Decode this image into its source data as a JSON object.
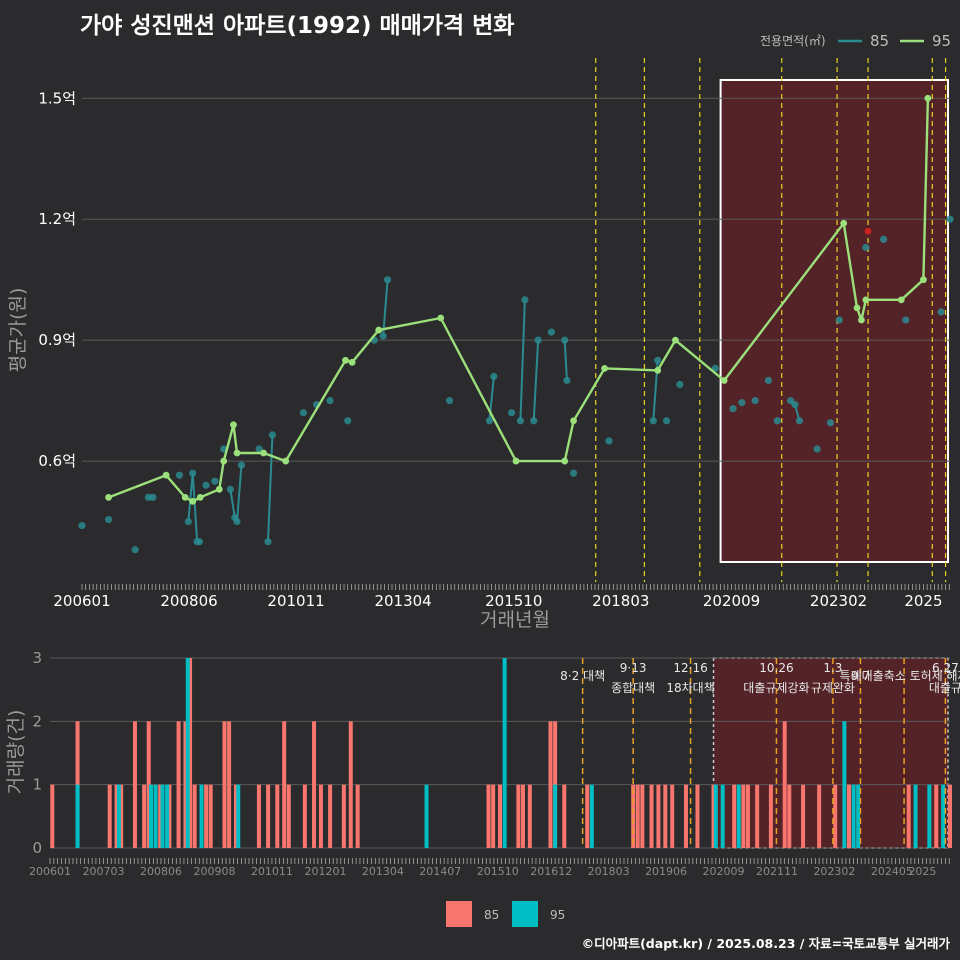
{
  "title": "가야 성진맨션 아파트(1992) 매매가격 변화",
  "footer": "©디아파트(dapt.kr) / 2025.08.23 / 자료=국토교통부 실거래가",
  "colors": {
    "background": "#2b2b2d",
    "grid": "#5a5a5a",
    "line85": "#2a8a8f",
    "line95": "#9be07a",
    "bar85": "#f8766d",
    "bar95": "#00bfc4",
    "highlight_fill": "#5b2228",
    "policy_line": "#e8d229",
    "policy_line_bottom": "#e8a020"
  },
  "chart_data": [
    {
      "type": "line",
      "id": "price",
      "xlabel": "거래년월",
      "ylabel": "평균가(원)",
      "x_ticks": [
        "200601",
        "200806",
        "201011",
        "201304",
        "201510",
        "201803",
        "202009",
        "202302",
        "2025"
      ],
      "y_ticks": [
        {
          "value": 0.6,
          "label": "0.6억"
        },
        {
          "value": 0.9,
          "label": "0.9억"
        },
        {
          "value": 1.2,
          "label": "1.2억"
        },
        {
          "value": 1.5,
          "label": "1.5억"
        }
      ],
      "ylim": [
        0.3,
        1.6
      ],
      "legend": {
        "title": "전용면적(㎡)",
        "items": [
          "85",
          "95"
        ],
        "position": "top-right"
      },
      "highlight_range": [
        2020.42,
        2025.7
      ],
      "policy_lines": [
        2017.6,
        2018.7,
        2019.95,
        2021.8,
        2023.05,
        2023.75,
        2025.2,
        2025.5
      ],
      "series": [
        {
          "name": "95",
          "points": [
            [
              2006.6,
              0.51
            ],
            [
              2007.9,
              0.565
            ],
            [
              2008.33,
              0.51
            ],
            [
              2008.5,
              0.5
            ],
            [
              2008.67,
              0.51
            ],
            [
              2009.1,
              0.53
            ],
            [
              2009.2,
              0.6
            ],
            [
              2009.42,
              0.69
            ],
            [
              2009.5,
              0.62
            ],
            [
              2010.1,
              0.62
            ],
            [
              2010.6,
              0.6
            ],
            [
              2011.95,
              0.85
            ],
            [
              2012.1,
              0.845
            ],
            [
              2012.7,
              0.925
            ],
            [
              2014.1,
              0.955
            ],
            [
              2015.8,
              0.6
            ],
            [
              2016.9,
              0.6
            ],
            [
              2017.1,
              0.7
            ],
            [
              2017.8,
              0.83
            ],
            [
              2019.0,
              0.825
            ],
            [
              2019.4,
              0.9
            ],
            [
              2020.5,
              0.8
            ],
            [
              2023.2,
              1.19
            ],
            [
              2023.5,
              0.98
            ],
            [
              2023.6,
              0.95
            ],
            [
              2023.7,
              1.0
            ],
            [
              2024.5,
              1.0
            ],
            [
              2025.0,
              1.05
            ],
            [
              2025.1,
              1.5
            ]
          ]
        },
        {
          "name": "85",
          "points": [
            [
              2006.0,
              0.44
            ],
            [
              2006.6,
              0.455
            ],
            [
              2007.2,
              0.38
            ],
            [
              2007.5,
              0.51
            ],
            [
              2007.6,
              0.51
            ],
            [
              2008.2,
              0.565
            ],
            [
              2008.4,
              0.45
            ],
            [
              2008.5,
              0.57
            ],
            [
              2008.6,
              0.4
            ],
            [
              2008.65,
              0.4
            ],
            [
              2008.8,
              0.54
            ],
            [
              2009.0,
              0.55
            ],
            [
              2009.2,
              0.63
            ],
            [
              2009.35,
              0.53
            ],
            [
              2009.45,
              0.46
            ],
            [
              2009.5,
              0.45
            ],
            [
              2009.6,
              0.59
            ],
            [
              2010.0,
              0.63
            ],
            [
              2010.2,
              0.4
            ],
            [
              2010.3,
              0.665
            ],
            [
              2011.0,
              0.72
            ],
            [
              2011.3,
              0.74
            ],
            [
              2011.6,
              0.75
            ],
            [
              2012.0,
              0.7
            ],
            [
              2012.6,
              0.9
            ],
            [
              2012.8,
              0.91
            ],
            [
              2012.9,
              1.05
            ],
            [
              2014.3,
              0.75
            ],
            [
              2015.2,
              0.7
            ],
            [
              2015.3,
              0.81
            ],
            [
              2015.7,
              0.72
            ],
            [
              2015.9,
              0.7
            ],
            [
              2016.0,
              1.0
            ],
            [
              2016.2,
              0.7
            ],
            [
              2016.3,
              0.9
            ],
            [
              2016.6,
              0.92
            ],
            [
              2016.9,
              0.9
            ],
            [
              2016.95,
              0.8
            ],
            [
              2017.1,
              0.57
            ],
            [
              2017.9,
              0.65
            ],
            [
              2018.9,
              0.7
            ],
            [
              2019.0,
              0.85
            ],
            [
              2019.2,
              0.7
            ],
            [
              2019.5,
              0.79
            ],
            [
              2020.3,
              0.83
            ],
            [
              2020.7,
              0.73
            ],
            [
              2020.9,
              0.745
            ],
            [
              2021.2,
              0.75
            ],
            [
              2021.5,
              0.8
            ],
            [
              2021.7,
              0.7
            ],
            [
              2022.0,
              0.75
            ],
            [
              2022.1,
              0.74
            ],
            [
              2022.2,
              0.7
            ],
            [
              2022.6,
              0.63
            ],
            [
              2022.9,
              0.695
            ],
            [
              2023.1,
              0.95
            ],
            [
              2023.7,
              1.13
            ],
            [
              2024.1,
              1.15
            ],
            [
              2024.6,
              0.95
            ],
            [
              2025.4,
              0.97
            ],
            [
              2025.6,
              1.2
            ]
          ]
        }
      ],
      "outlier_marker": {
        "x": 2023.75,
        "y": 1.17,
        "color": "#cc2222"
      }
    },
    {
      "type": "bar",
      "id": "volume",
      "ylabel": "거래량(건)",
      "x_ticks": [
        "200601",
        "200703",
        "200806",
        "200908",
        "201011",
        "201201",
        "201304",
        "201407",
        "201510",
        "201612",
        "201803",
        "201906",
        "202009",
        "202111",
        "202302",
        "202405",
        "2025"
      ],
      "y_ticks": [
        0,
        1,
        2,
        3
      ],
      "ylim": [
        0,
        3
      ],
      "legend": {
        "items": [
          "85",
          "95"
        ],
        "position": "bottom"
      },
      "highlight_range": [
        2020.45,
        2025.7
      ],
      "policy_events": [
        {
          "x": 2017.6,
          "date": "",
          "label": "8·2 대책"
        },
        {
          "x": 2018.7,
          "date": "9·13",
          "label": "종합대책"
        },
        {
          "x": 2019.95,
          "date": "12·16",
          "label": "18차대책"
        },
        {
          "x": 2021.82,
          "date": "10.26",
          "label": "대출규제강화"
        },
        {
          "x": 2023.05,
          "date": "1.3",
          "label": "규제완화"
        },
        {
          "x": 2023.65,
          "date": "",
          "label": "9·7"
        },
        {
          "x": 2024.6,
          "date": "",
          "label": "특례대출축소 토허제 해제"
        },
        {
          "x": 2025.5,
          "date": "6.27",
          "label": "대출규"
        }
      ],
      "series": [
        {
          "name": "85",
          "values": [
            [
              2006.05,
              1
            ],
            [
              2006.6,
              2
            ],
            [
              2007.3,
              1
            ],
            [
              2007.45,
              1
            ],
            [
              2007.55,
              1
            ],
            [
              2007.85,
              2
            ],
            [
              2008.05,
              1
            ],
            [
              2008.15,
              2
            ],
            [
              2008.4,
              1
            ],
            [
              2008.6,
              1
            ],
            [
              2008.8,
              2
            ],
            [
              2008.95,
              2
            ],
            [
              2009.05,
              3
            ],
            [
              2009.15,
              1
            ],
            [
              2009.4,
              1
            ],
            [
              2009.5,
              1
            ],
            [
              2009.8,
              2
            ],
            [
              2009.9,
              2
            ],
            [
              2010.05,
              1
            ],
            [
              2010.55,
              1
            ],
            [
              2010.75,
              1
            ],
            [
              2010.95,
              1
            ],
            [
              2011.1,
              2
            ],
            [
              2011.2,
              1
            ],
            [
              2011.55,
              1
            ],
            [
              2011.75,
              2
            ],
            [
              2011.9,
              1
            ],
            [
              2012.1,
              1
            ],
            [
              2012.4,
              1
            ],
            [
              2012.55,
              2
            ],
            [
              2012.7,
              1
            ],
            [
              2015.55,
              1
            ],
            [
              2015.65,
              1
            ],
            [
              2015.8,
              1
            ],
            [
              2016.2,
              1
            ],
            [
              2016.3,
              1
            ],
            [
              2016.45,
              1
            ],
            [
              2016.9,
              2
            ],
            [
              2017.0,
              2
            ],
            [
              2017.2,
              1
            ],
            [
              2017.7,
              1
            ],
            [
              2018.7,
              1
            ],
            [
              2018.8,
              1
            ],
            [
              2018.9,
              1
            ],
            [
              2019.1,
              1
            ],
            [
              2019.25,
              1
            ],
            [
              2019.4,
              1
            ],
            [
              2019.55,
              1
            ],
            [
              2019.85,
              1
            ],
            [
              2020.1,
              1
            ],
            [
              2020.45,
              1
            ],
            [
              2020.9,
              1
            ],
            [
              2021.1,
              1
            ],
            [
              2021.2,
              1
            ],
            [
              2021.4,
              1
            ],
            [
              2021.7,
              1
            ],
            [
              2022.0,
              2
            ],
            [
              2022.1,
              1
            ],
            [
              2022.4,
              1
            ],
            [
              2022.75,
              1
            ],
            [
              2023.1,
              1
            ],
            [
              2023.4,
              1
            ],
            [
              2024.7,
              1
            ],
            [
              2025.3,
              1
            ],
            [
              2025.6,
              1
            ]
          ]
        },
        {
          "name": "95",
          "values": [
            [
              2006.6,
              1
            ],
            [
              2007.5,
              1
            ],
            [
              2008.2,
              1
            ],
            [
              2008.3,
              1
            ],
            [
              2008.45,
              1
            ],
            [
              2008.55,
              1
            ],
            [
              2009.0,
              3
            ],
            [
              2009.3,
              1
            ],
            [
              2010.1,
              1
            ],
            [
              2014.2,
              1
            ],
            [
              2015.9,
              3
            ],
            [
              2017.0,
              1
            ],
            [
              2017.8,
              1
            ],
            [
              2020.5,
              1
            ],
            [
              2020.65,
              1
            ],
            [
              2021.0,
              1
            ],
            [
              2023.3,
              2
            ],
            [
              2023.5,
              1
            ],
            [
              2023.6,
              1
            ],
            [
              2024.85,
              1
            ],
            [
              2025.15,
              1
            ],
            [
              2025.45,
              1
            ]
          ]
        }
      ]
    }
  ]
}
